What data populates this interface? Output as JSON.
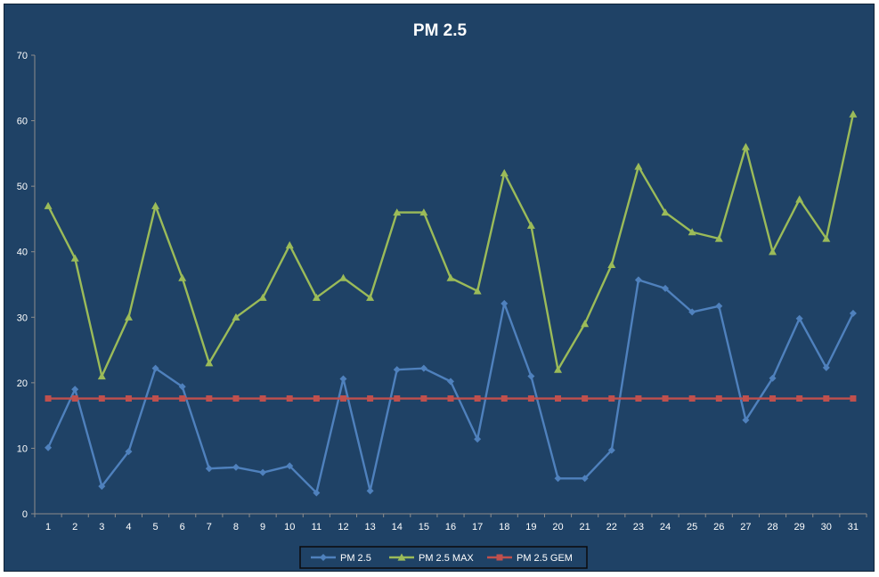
{
  "chart_data": {
    "type": "line",
    "title": "PM 2.5",
    "xlabel": "",
    "ylabel": "",
    "x": [
      "1",
      "2",
      "3",
      "4",
      "5",
      "6",
      "7",
      "8",
      "9",
      "10",
      "11",
      "12",
      "13",
      "14",
      "15",
      "16",
      "17",
      "18",
      "19",
      "20",
      "21",
      "22",
      "23",
      "24",
      "25",
      "26",
      "27",
      "28",
      "29",
      "30",
      "31"
    ],
    "ylim": [
      0,
      70
    ],
    "yticks": [
      0,
      10,
      20,
      30,
      40,
      50,
      60,
      70
    ],
    "grid": false,
    "legend_position": "bottom",
    "background_color": "#1f4266",
    "series": [
      {
        "name": "PM 2.5",
        "color": "#4f81bd",
        "marker": "diamond",
        "values": [
          10.1,
          19,
          4.2,
          9.5,
          22.2,
          19.4,
          6.9,
          7.1,
          6.3,
          7.3,
          3.2,
          20.6,
          3.5,
          22,
          22.2,
          20.2,
          11.4,
          32.1,
          21,
          5.4,
          5.4,
          9.7,
          35.7,
          34.4,
          30.8,
          31.7,
          14.3,
          20.7,
          29.8,
          22.3,
          30.6
        ]
      },
      {
        "name": "PM 2.5 MAX",
        "color": "#9bbb59",
        "marker": "triangle",
        "values": [
          47,
          39,
          21,
          30,
          47,
          36,
          23,
          30,
          33,
          41,
          33,
          36,
          33,
          46,
          46,
          36,
          34,
          52,
          44,
          22,
          29,
          38,
          53,
          46,
          43,
          42,
          56,
          40,
          48,
          42,
          61
        ]
      },
      {
        "name": "PM 2.5 GEM",
        "color": "#c0504d",
        "marker": "square",
        "values": [
          17.6,
          17.6,
          17.6,
          17.6,
          17.6,
          17.6,
          17.6,
          17.6,
          17.6,
          17.6,
          17.6,
          17.6,
          17.6,
          17.6,
          17.6,
          17.6,
          17.6,
          17.6,
          17.6,
          17.6,
          17.6,
          17.6,
          17.6,
          17.6,
          17.6,
          17.6,
          17.6,
          17.6,
          17.6,
          17.6,
          17.6
        ]
      }
    ]
  }
}
